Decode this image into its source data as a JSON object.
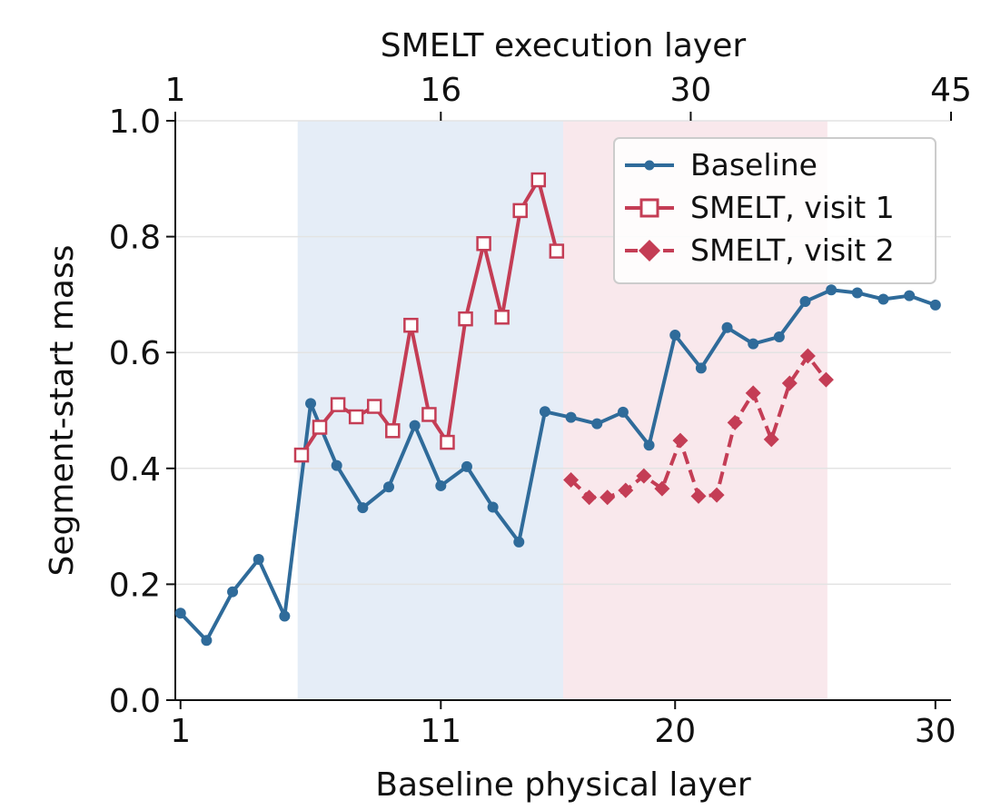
{
  "chart_data": {
    "type": "line",
    "xlabel": "Baseline physical layer",
    "x2label": "SMELT execution layer",
    "ylabel": "Segment-start mass",
    "xlim": [
      0.8,
      30.6
    ],
    "ylim": [
      0.0,
      1.0
    ],
    "xticks": [
      1,
      11,
      20,
      30
    ],
    "x2ticks": [
      {
        "label": "1",
        "x": 0.8
      },
      {
        "label": "16",
        "x": 11.0
      },
      {
        "label": "30",
        "x": 20.6
      },
      {
        "label": "45",
        "x": 30.6
      }
    ],
    "yticks": [
      "0.0",
      "0.2",
      "0.4",
      "0.6",
      "0.8",
      "1.0"
    ],
    "grid": "horizontal",
    "legend_position": "top-right",
    "shaded_regions": [
      {
        "x0": 5.5,
        "x1": 15.7,
        "color": "#e5edf7"
      },
      {
        "x0": 15.7,
        "x1": 25.85,
        "color": "#f9e8ec"
      }
    ],
    "series": [
      {
        "name": "Baseline",
        "color": "#2f6b9a",
        "marker": "circle",
        "line": "solid",
        "points": [
          [
            1,
            0.15
          ],
          [
            2,
            0.103
          ],
          [
            3,
            0.187
          ],
          [
            4,
            0.243
          ],
          [
            5,
            0.145
          ],
          [
            6,
            0.512
          ],
          [
            7,
            0.405
          ],
          [
            8,
            0.332
          ],
          [
            9,
            0.368
          ],
          [
            10,
            0.474
          ],
          [
            11,
            0.37
          ],
          [
            12,
            0.403
          ],
          [
            13,
            0.333
          ],
          [
            14,
            0.273
          ],
          [
            15,
            0.498
          ],
          [
            16,
            0.488
          ],
          [
            17,
            0.477
          ],
          [
            18,
            0.497
          ],
          [
            19,
            0.44
          ],
          [
            20,
            0.63
          ],
          [
            21,
            0.573
          ],
          [
            22,
            0.643
          ],
          [
            23,
            0.615
          ],
          [
            24,
            0.627
          ],
          [
            25,
            0.688
          ],
          [
            26,
            0.708
          ],
          [
            27,
            0.703
          ],
          [
            28,
            0.692
          ],
          [
            29,
            0.698
          ],
          [
            30,
            0.682
          ]
        ]
      },
      {
        "name": "SMELT, visit 1",
        "color": "#c43d55",
        "marker": "open-square",
        "line": "solid",
        "points": [
          [
            5.65,
            0.423
          ],
          [
            6.35,
            0.471
          ],
          [
            7.05,
            0.51
          ],
          [
            7.75,
            0.489
          ],
          [
            8.45,
            0.507
          ],
          [
            9.15,
            0.465
          ],
          [
            9.85,
            0.647
          ],
          [
            10.55,
            0.493
          ],
          [
            11.25,
            0.445
          ],
          [
            11.95,
            0.658
          ],
          [
            12.65,
            0.788
          ],
          [
            13.35,
            0.661
          ],
          [
            14.05,
            0.845
          ],
          [
            14.75,
            0.898
          ],
          [
            15.45,
            0.775
          ]
        ]
      },
      {
        "name": "SMELT, visit 2",
        "color": "#c43d55",
        "marker": "filled-diamond",
        "line": "dashed",
        "points": [
          [
            16.0,
            0.38
          ],
          [
            16.7,
            0.35
          ],
          [
            17.4,
            0.35
          ],
          [
            18.1,
            0.362
          ],
          [
            18.8,
            0.387
          ],
          [
            19.5,
            0.365
          ],
          [
            20.2,
            0.448
          ],
          [
            20.9,
            0.352
          ],
          [
            21.6,
            0.354
          ],
          [
            22.3,
            0.479
          ],
          [
            23.0,
            0.53
          ],
          [
            23.7,
            0.45
          ],
          [
            24.4,
            0.547
          ],
          [
            25.1,
            0.594
          ],
          [
            25.8,
            0.553
          ]
        ]
      }
    ]
  }
}
